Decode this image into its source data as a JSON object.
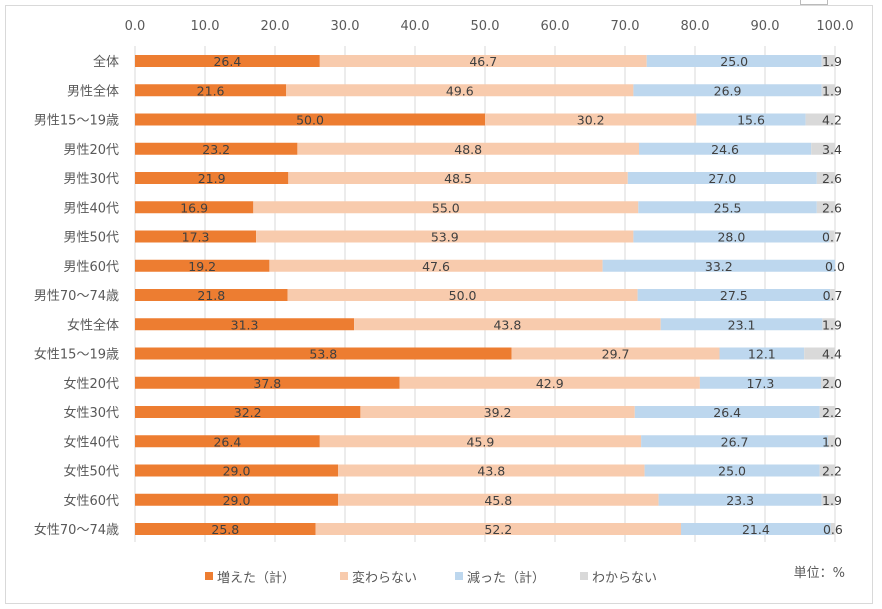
{
  "chart_data": {
    "type": "bar",
    "orientation": "horizontal",
    "stacked": true,
    "xlim": [
      0,
      100
    ],
    "x_ticks": [
      "0.0",
      "10.0",
      "20.0",
      "30.0",
      "40.0",
      "50.0",
      "60.0",
      "70.0",
      "80.0",
      "90.0",
      "100.0"
    ],
    "grid": true,
    "legend_position": "bottom",
    "unit_note": "単位：%",
    "categories": [
      "全体",
      "男性全体",
      "男性15～19歳",
      "男性20代",
      "男性30代",
      "男性40代",
      "男性50代",
      "男性60代",
      "男性70～74歳",
      "女性全体",
      "女性15～19歳",
      "女性20代",
      "女性30代",
      "女性40代",
      "女性50代",
      "女性60代",
      "女性70～74歳"
    ],
    "series": [
      {
        "name": "増えた（計）",
        "color": "#ed7d31",
        "values": [
          26.4,
          21.6,
          50.0,
          23.2,
          21.9,
          16.9,
          17.3,
          19.2,
          21.8,
          31.3,
          53.8,
          37.8,
          32.2,
          26.4,
          29.0,
          29.0,
          25.8
        ]
      },
      {
        "name": "変わらない",
        "color": "#f8cbad",
        "values": [
          46.7,
          49.6,
          30.2,
          48.8,
          48.5,
          55.0,
          53.9,
          47.6,
          50.0,
          43.8,
          29.7,
          42.9,
          39.2,
          45.9,
          43.8,
          45.8,
          52.2
        ]
      },
      {
        "name": "減った（計）",
        "color": "#bdd7ee",
        "values": [
          25.0,
          26.9,
          15.6,
          24.6,
          27.0,
          25.5,
          28.0,
          33.2,
          27.5,
          23.1,
          12.1,
          17.3,
          26.4,
          26.7,
          25.0,
          23.3,
          21.4
        ]
      },
      {
        "name": "わからない",
        "color": "#d9d9d9",
        "values": [
          1.9,
          1.9,
          4.2,
          3.4,
          2.6,
          2.6,
          0.7,
          0.0,
          0.7,
          1.9,
          4.4,
          2.0,
          2.2,
          1.0,
          2.2,
          1.9,
          0.6
        ]
      }
    ]
  }
}
